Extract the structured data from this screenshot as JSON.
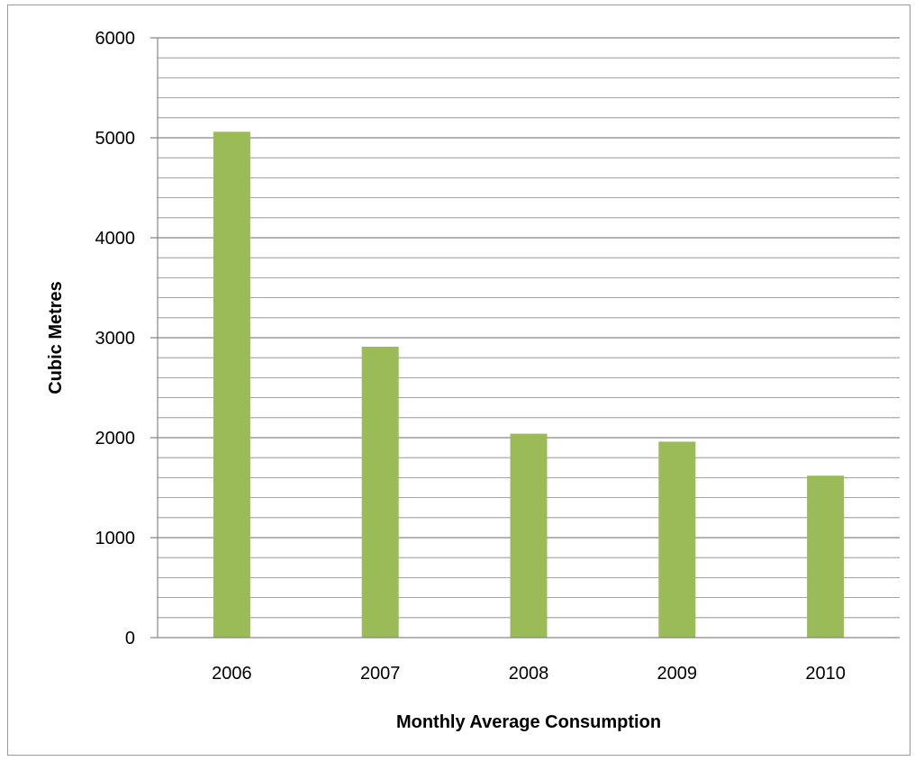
{
  "chart_data": {
    "type": "bar",
    "title": "",
    "xlabel": "Monthly Average Consumption",
    "ylabel": "Cubic Metres",
    "categories": [
      "2006",
      "2007",
      "2008",
      "2009",
      "2010"
    ],
    "values": [
      5060,
      2910,
      2040,
      1960,
      1620
    ],
    "ylim": [
      0,
      6000
    ],
    "yticks": [
      "0",
      "1000",
      "2000",
      "3000",
      "4000",
      "5000",
      "6000"
    ],
    "minor_gridlines_per_major": 5,
    "grid": true,
    "legend": "none",
    "bar_color": "#9bbb59",
    "grid_color": "#868686"
  }
}
